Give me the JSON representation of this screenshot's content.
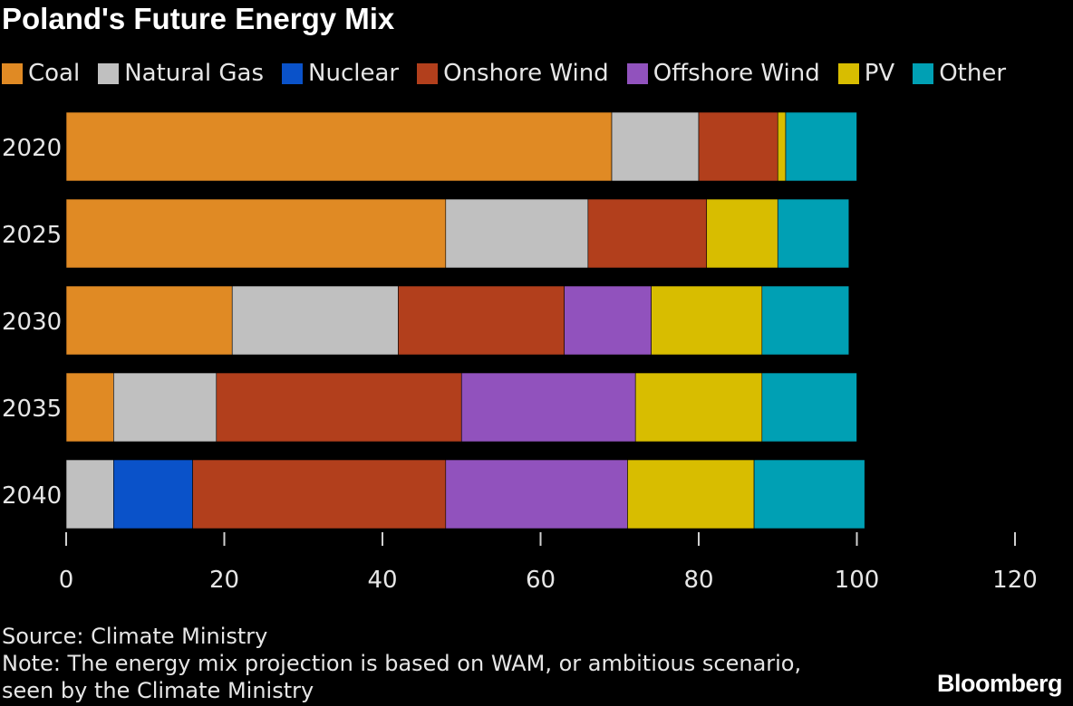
{
  "chart_data": {
    "type": "bar",
    "orientation": "horizontal",
    "stacked": true,
    "title": "Poland's Future Energy Mix",
    "categories": [
      "2020",
      "2025",
      "2030",
      "2035",
      "2040"
    ],
    "series": [
      {
        "name": "Coal",
        "color": "#e08a24",
        "values": [
          69,
          48,
          21,
          6,
          0
        ]
      },
      {
        "name": "Natural Gas",
        "color": "#c0c0c0",
        "values": [
          11,
          18,
          21,
          13,
          6
        ]
      },
      {
        "name": "Nuclear",
        "color": "#0a52c9",
        "values": [
          0,
          0,
          0,
          0,
          10
        ]
      },
      {
        "name": "Onshore Wind",
        "color": "#b23f1c",
        "values": [
          10,
          15,
          21,
          31,
          32
        ]
      },
      {
        "name": "Offshore Wind",
        "color": "#9152bd",
        "values": [
          0,
          0,
          11,
          22,
          23
        ]
      },
      {
        "name": "PV",
        "color": "#d8bd00",
        "values": [
          1,
          9,
          14,
          16,
          16
        ]
      },
      {
        "name": "Other",
        "color": "#00a0b4",
        "values": [
          9,
          9,
          11,
          12,
          14
        ]
      }
    ],
    "xlim": [
      0,
      120
    ],
    "xticks": [
      "0",
      "20",
      "40",
      "60",
      "80",
      "100",
      "120"
    ],
    "xlabel": "",
    "ylabel": "",
    "legend": "top",
    "grid": false
  },
  "source": "Source: Climate Ministry",
  "note_line1": "Note: The energy mix projection is based on WAM, or ambitious scenario,",
  "note_line2": "seen by the Climate Ministry",
  "brand": "Bloomberg"
}
